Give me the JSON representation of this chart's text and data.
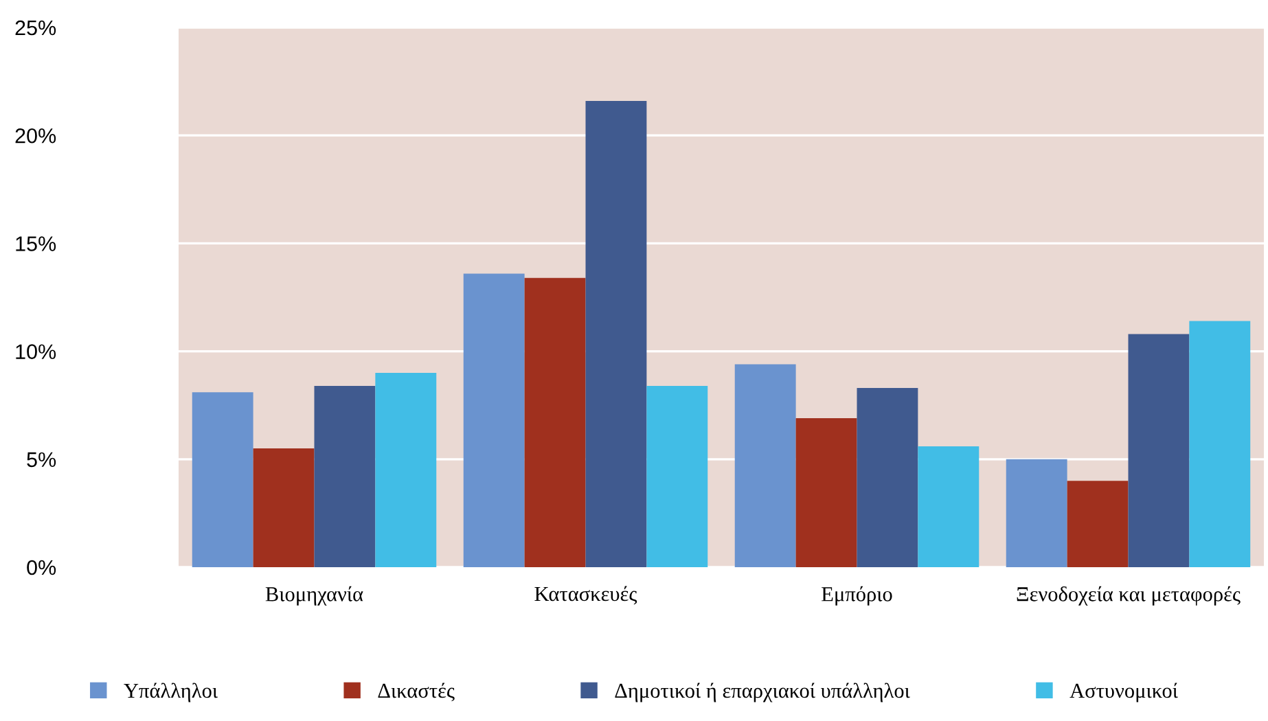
{
  "chart_data": {
    "type": "bar",
    "categories": [
      "Βιομηχανία",
      "Κατασκευές",
      "Εμπόριο",
      "Ξενοδοχεία και μεταφορές"
    ],
    "series": [
      {
        "name": "Υπάλληλοι",
        "color": "#6a93cf",
        "values": [
          8.1,
          13.6,
          9.4,
          5.0
        ]
      },
      {
        "name": "Δικαστές",
        "color": "#a0301e",
        "values": [
          5.5,
          13.4,
          6.9,
          4.0
        ]
      },
      {
        "name": "Δημοτικοί ή επαρχιακοί υπάλληλοι",
        "color": "#405a8f",
        "values": [
          8.4,
          21.6,
          8.3,
          10.8
        ]
      },
      {
        "name": "Αστυνομικοί",
        "color": "#41bde6",
        "values": [
          9.0,
          8.4,
          5.6,
          11.4
        ]
      }
    ],
    "ylim": [
      0,
      25
    ],
    "yticks": [
      {
        "value": 0,
        "label": "0%"
      },
      {
        "value": 5,
        "label": "5%"
      },
      {
        "value": 10,
        "label": "10%"
      },
      {
        "value": 15,
        "label": "15%"
      },
      {
        "value": 20,
        "label": "20%"
      },
      {
        "value": 25,
        "label": "25%"
      }
    ],
    "grid": "y",
    "legend": "bottom"
  }
}
